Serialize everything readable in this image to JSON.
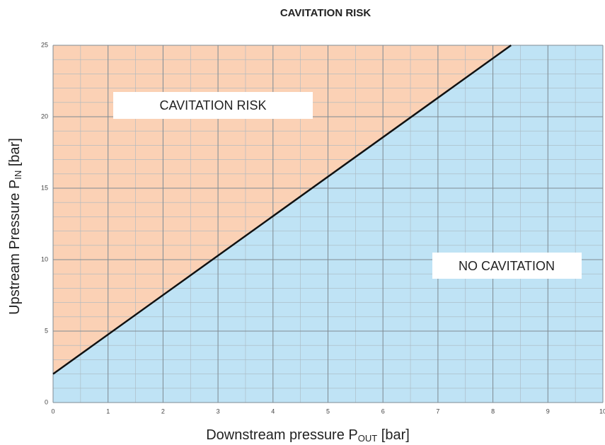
{
  "chart_data": {
    "type": "area-line",
    "title": "CAVITATION RISK",
    "xlabel": {
      "text": "Downstream pressure P",
      "subscript": "OUT",
      "suffix": " [bar]"
    },
    "ylabel": {
      "text": "Upstream Pressure P",
      "subscript": "IN",
      "suffix": " [bar]"
    },
    "annotations": [
      "CAVITATION RISK",
      "NO CAVITATION"
    ],
    "x": [
      0,
      8.33
    ],
    "values": [
      2,
      25
    ],
    "color": "#111111",
    "fill_above": "#fbd1b5",
    "fill_below": "#bfe3f5",
    "xlim": [
      0,
      10
    ],
    "ylim": [
      0,
      25
    ],
    "xticks": [
      0,
      1,
      2,
      3,
      4,
      5,
      6,
      7,
      8,
      9,
      10
    ],
    "yticks": [
      0,
      5,
      10,
      15,
      20,
      25
    ],
    "grid": {
      "x_minor": 0.5,
      "y_minor": 1
    }
  }
}
